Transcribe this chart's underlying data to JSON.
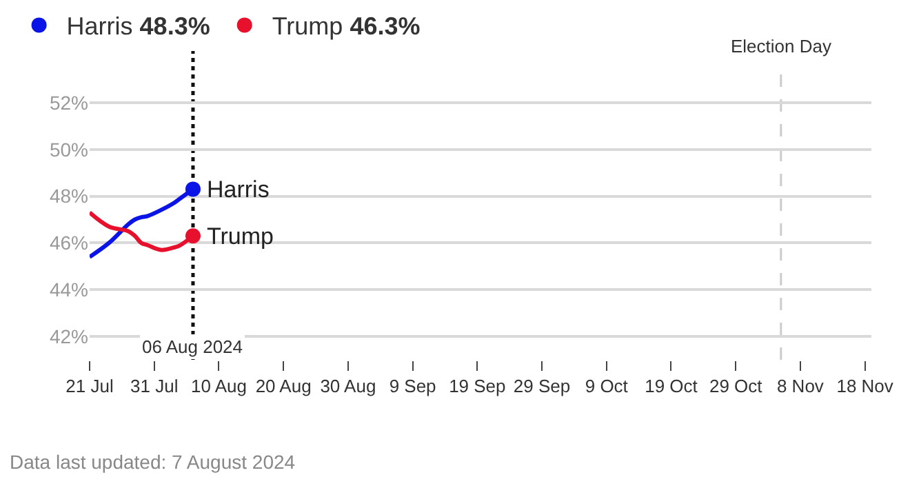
{
  "chart_data": {
    "type": "line",
    "x": [
      "2024-07-21",
      "2024-07-24",
      "2024-07-27",
      "2024-07-28",
      "2024-07-29",
      "2024-07-30",
      "2024-08-01",
      "2024-08-03",
      "2024-08-04",
      "2024-08-06"
    ],
    "series": [
      {
        "name": "Harris",
        "color": "#0a14e6",
        "values": [
          45.4,
          46.0,
          46.8,
          47.0,
          47.1,
          47.15,
          47.4,
          47.7,
          47.9,
          48.3
        ]
      },
      {
        "name": "Trump",
        "color": "#e8112d",
        "values": [
          47.3,
          46.7,
          46.5,
          46.3,
          46.0,
          45.9,
          45.7,
          45.8,
          45.9,
          46.3
        ]
      }
    ],
    "xlim": [
      "2024-07-21",
      "2024-11-19"
    ],
    "xticks": [
      {
        "value": "2024-07-21",
        "label": "21 Jul"
      },
      {
        "value": "2024-07-31",
        "label": "31 Jul"
      },
      {
        "value": "2024-08-10",
        "label": "10 Aug"
      },
      {
        "value": "2024-08-20",
        "label": "20 Aug"
      },
      {
        "value": "2024-08-30",
        "label": "30 Aug"
      },
      {
        "value": "2024-09-09",
        "label": "9 Sep"
      },
      {
        "value": "2024-09-19",
        "label": "19 Sep"
      },
      {
        "value": "2024-09-29",
        "label": "29 Sep"
      },
      {
        "value": "2024-10-09",
        "label": "9 Oct"
      },
      {
        "value": "2024-10-19",
        "label": "19 Oct"
      },
      {
        "value": "2024-10-29",
        "label": "29 Oct"
      },
      {
        "value": "2024-11-08",
        "label": "8 Nov"
      },
      {
        "value": "2024-11-18",
        "label": "18 Nov"
      }
    ],
    "ylim": [
      41,
      53.5
    ],
    "yticks": [
      {
        "value": 42,
        "label": "42%"
      },
      {
        "value": 44,
        "label": "44%"
      },
      {
        "value": 46,
        "label": "46%"
      },
      {
        "value": 48,
        "label": "48%"
      },
      {
        "value": 50,
        "label": "50%"
      },
      {
        "value": 52,
        "label": "52%"
      }
    ],
    "grid": "y",
    "legend": "top left",
    "ref_lines": [
      {
        "axis": "x",
        "value": "2024-08-06",
        "label": "06 Aug 2024",
        "color": "#111111",
        "line_style": "dotted"
      },
      {
        "axis": "x",
        "value": "2024-11-05",
        "label": "Election Day",
        "color": "#cccccc",
        "line_style": "dashed"
      }
    ],
    "annotations": [
      "48.3%",
      "46.3%",
      "Data last updated: 7 August 2024"
    ]
  }
}
